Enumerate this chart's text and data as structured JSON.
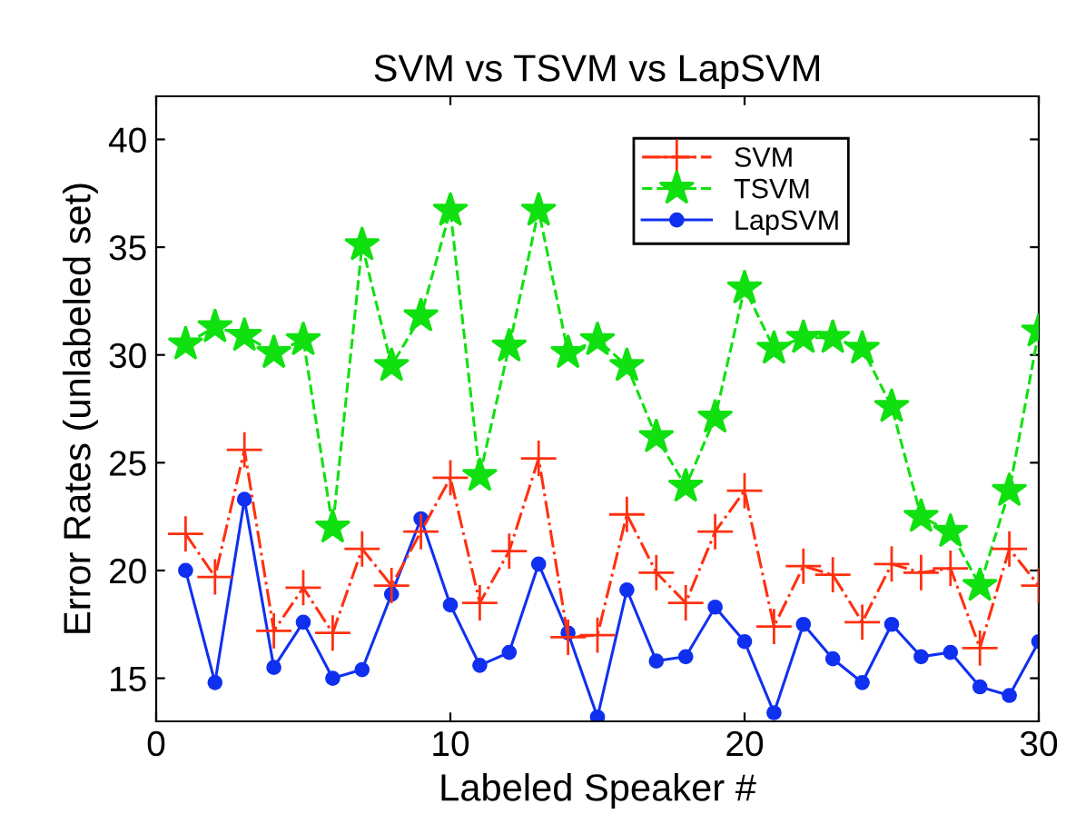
{
  "chart_data": {
    "type": "line",
    "title": "SVM vs TSVM vs LapSVM",
    "xlabel": "Labeled Speaker #",
    "ylabel": "Error Rates (unlabeled set)",
    "x": [
      1,
      2,
      3,
      4,
      5,
      6,
      7,
      8,
      9,
      10,
      11,
      12,
      13,
      14,
      15,
      16,
      17,
      18,
      19,
      20,
      21,
      22,
      23,
      24,
      25,
      26,
      27,
      28,
      29,
      30
    ],
    "series": [
      {
        "name": "SVM",
        "color": "#ff3010",
        "marker": "cross",
        "line_style": "dashdot",
        "values": [
          21.7,
          19.7,
          25.6,
          17.2,
          19.2,
          17.1,
          21.0,
          19.3,
          21.8,
          24.3,
          18.5,
          20.9,
          25.2,
          16.9,
          17.0,
          22.6,
          19.9,
          18.5,
          21.8,
          23.7,
          17.4,
          20.2,
          19.8,
          17.6,
          20.3,
          19.9,
          20.1,
          16.4,
          21.0,
          19.3
        ]
      },
      {
        "name": "TSVM",
        "color": "#10e010",
        "marker": "star",
        "line_style": "dashed",
        "values": [
          30.5,
          31.3,
          30.9,
          30.1,
          30.7,
          22.0,
          35.1,
          29.5,
          31.8,
          36.7,
          24.4,
          30.4,
          36.7,
          30.1,
          30.7,
          29.5,
          26.2,
          23.9,
          27.1,
          33.1,
          30.3,
          30.8,
          30.8,
          30.3,
          27.6,
          22.5,
          21.8,
          19.3,
          23.7,
          31.1
        ]
      },
      {
        "name": "LapSVM",
        "color": "#1030f0",
        "marker": "circle",
        "line_style": "solid",
        "values": [
          20.0,
          14.8,
          23.3,
          15.5,
          17.6,
          15.0,
          15.4,
          18.9,
          22.4,
          18.4,
          15.6,
          16.2,
          20.3,
          17.1,
          13.2,
          19.1,
          15.8,
          16.0,
          18.3,
          16.7,
          13.4,
          17.5,
          15.9,
          14.8,
          17.5,
          16.0,
          16.2,
          14.6,
          14.2,
          16.7
        ]
      }
    ],
    "xlim": [
      0,
      30
    ],
    "xticks": [
      0,
      10,
      20,
      30
    ],
    "ylim": [
      13,
      42
    ],
    "yticks": [
      15,
      20,
      25,
      30,
      35,
      40
    ],
    "grid": false,
    "legend": "top right"
  }
}
